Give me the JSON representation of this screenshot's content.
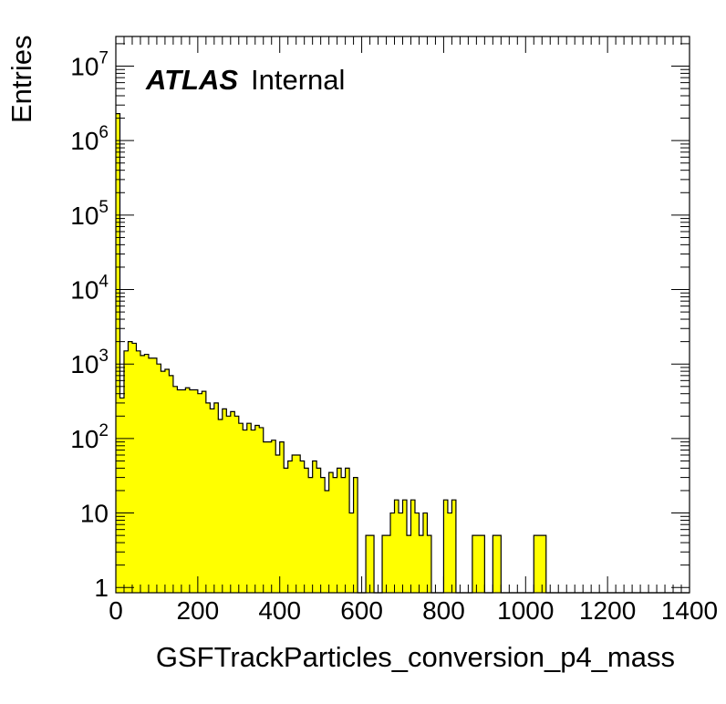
{
  "chart_data": {
    "type": "histogram",
    "xlabel": "GSFTrackParticles_conversion_p4_mass",
    "ylabel": "Entries",
    "xlim": [
      0,
      1400
    ],
    "ylim": [
      0.85,
      25000000
    ],
    "yscale": "log",
    "bin_width": 10,
    "fill_color": "#ffff00",
    "edge_color": "#000000",
    "grid": false,
    "x_ticks": [
      "0",
      "200",
      "400",
      "600",
      "800",
      "1000",
      "1200",
      "1400"
    ],
    "y_ticks": [
      {
        "value": 1,
        "base": "1",
        "exp": ""
      },
      {
        "value": 10,
        "base": "10",
        "exp": ""
      },
      {
        "value": 100,
        "base": "10",
        "exp": "2"
      },
      {
        "value": 1000,
        "base": "10",
        "exp": "3"
      },
      {
        "value": 10000,
        "base": "10",
        "exp": "4"
      },
      {
        "value": 100000,
        "base": "10",
        "exp": "5"
      },
      {
        "value": 1000000,
        "base": "10",
        "exp": "6"
      },
      {
        "value": 10000000,
        "base": "10",
        "exp": "7"
      }
    ],
    "values": [
      2300000,
      350,
      1500,
      2000,
      1900,
      1500,
      1300,
      1350,
      1200,
      1200,
      1000,
      800,
      850,
      700,
      500,
      450,
      450,
      480,
      450,
      450,
      400,
      430,
      300,
      250,
      300,
      180,
      250,
      200,
      230,
      200,
      160,
      130,
      160,
      130,
      150,
      140,
      90,
      90,
      95,
      60,
      90,
      40,
      50,
      60,
      60,
      50,
      40,
      30,
      50,
      40,
      30,
      20,
      35,
      30,
      40,
      30,
      40,
      10,
      30,
      0,
      0,
      5,
      5,
      0,
      0,
      5,
      5,
      10,
      15,
      10,
      15,
      5,
      15,
      10,
      5,
      10,
      5,
      0,
      0,
      0,
      15,
      10,
      15,
      0,
      0,
      0,
      0,
      5,
      5,
      5,
      0,
      0,
      5,
      5,
      0,
      0,
      0,
      0,
      0,
      0,
      0,
      0,
      5,
      5,
      5,
      0,
      0,
      0,
      0,
      0,
      0,
      0,
      0,
      0,
      0,
      0,
      0,
      0,
      0,
      0,
      0,
      0,
      0,
      0,
      0,
      0,
      0,
      0,
      0,
      0,
      0,
      0,
      0,
      0,
      0,
      0,
      0,
      0,
      0,
      0
    ]
  },
  "watermark": {
    "experiment": "ATLAS",
    "status": "Internal"
  }
}
